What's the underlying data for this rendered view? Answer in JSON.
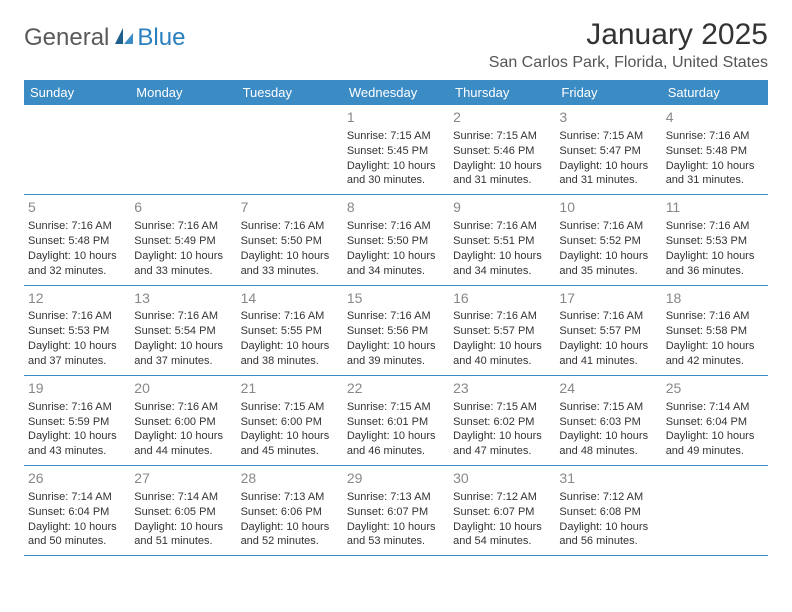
{
  "logo": {
    "general": "General",
    "blue": "Blue"
  },
  "title": "January 2025",
  "location": "San Carlos Park, Florida, United States",
  "colors": {
    "header_bg": "#3b8bc4",
    "header_text": "#ffffff",
    "border": "#3b8bc4",
    "daynum": "#888888",
    "body_text": "#333333",
    "logo_general": "#5a5a5a",
    "logo_blue": "#2a7fbf"
  },
  "day_headers": [
    "Sunday",
    "Monday",
    "Tuesday",
    "Wednesday",
    "Thursday",
    "Friday",
    "Saturday"
  ],
  "weeks": [
    [
      null,
      null,
      null,
      {
        "n": "1",
        "sr": "7:15 AM",
        "ss": "5:45 PM",
        "dl": "10 hours and 30 minutes."
      },
      {
        "n": "2",
        "sr": "7:15 AM",
        "ss": "5:46 PM",
        "dl": "10 hours and 31 minutes."
      },
      {
        "n": "3",
        "sr": "7:15 AM",
        "ss": "5:47 PM",
        "dl": "10 hours and 31 minutes."
      },
      {
        "n": "4",
        "sr": "7:16 AM",
        "ss": "5:48 PM",
        "dl": "10 hours and 31 minutes."
      }
    ],
    [
      {
        "n": "5",
        "sr": "7:16 AM",
        "ss": "5:48 PM",
        "dl": "10 hours and 32 minutes."
      },
      {
        "n": "6",
        "sr": "7:16 AM",
        "ss": "5:49 PM",
        "dl": "10 hours and 33 minutes."
      },
      {
        "n": "7",
        "sr": "7:16 AM",
        "ss": "5:50 PM",
        "dl": "10 hours and 33 minutes."
      },
      {
        "n": "8",
        "sr": "7:16 AM",
        "ss": "5:50 PM",
        "dl": "10 hours and 34 minutes."
      },
      {
        "n": "9",
        "sr": "7:16 AM",
        "ss": "5:51 PM",
        "dl": "10 hours and 34 minutes."
      },
      {
        "n": "10",
        "sr": "7:16 AM",
        "ss": "5:52 PM",
        "dl": "10 hours and 35 minutes."
      },
      {
        "n": "11",
        "sr": "7:16 AM",
        "ss": "5:53 PM",
        "dl": "10 hours and 36 minutes."
      }
    ],
    [
      {
        "n": "12",
        "sr": "7:16 AM",
        "ss": "5:53 PM",
        "dl": "10 hours and 37 minutes."
      },
      {
        "n": "13",
        "sr": "7:16 AM",
        "ss": "5:54 PM",
        "dl": "10 hours and 37 minutes."
      },
      {
        "n": "14",
        "sr": "7:16 AM",
        "ss": "5:55 PM",
        "dl": "10 hours and 38 minutes."
      },
      {
        "n": "15",
        "sr": "7:16 AM",
        "ss": "5:56 PM",
        "dl": "10 hours and 39 minutes."
      },
      {
        "n": "16",
        "sr": "7:16 AM",
        "ss": "5:57 PM",
        "dl": "10 hours and 40 minutes."
      },
      {
        "n": "17",
        "sr": "7:16 AM",
        "ss": "5:57 PM",
        "dl": "10 hours and 41 minutes."
      },
      {
        "n": "18",
        "sr": "7:16 AM",
        "ss": "5:58 PM",
        "dl": "10 hours and 42 minutes."
      }
    ],
    [
      {
        "n": "19",
        "sr": "7:16 AM",
        "ss": "5:59 PM",
        "dl": "10 hours and 43 minutes."
      },
      {
        "n": "20",
        "sr": "7:16 AM",
        "ss": "6:00 PM",
        "dl": "10 hours and 44 minutes."
      },
      {
        "n": "21",
        "sr": "7:15 AM",
        "ss": "6:00 PM",
        "dl": "10 hours and 45 minutes."
      },
      {
        "n": "22",
        "sr": "7:15 AM",
        "ss": "6:01 PM",
        "dl": "10 hours and 46 minutes."
      },
      {
        "n": "23",
        "sr": "7:15 AM",
        "ss": "6:02 PM",
        "dl": "10 hours and 47 minutes."
      },
      {
        "n": "24",
        "sr": "7:15 AM",
        "ss": "6:03 PM",
        "dl": "10 hours and 48 minutes."
      },
      {
        "n": "25",
        "sr": "7:14 AM",
        "ss": "6:04 PM",
        "dl": "10 hours and 49 minutes."
      }
    ],
    [
      {
        "n": "26",
        "sr": "7:14 AM",
        "ss": "6:04 PM",
        "dl": "10 hours and 50 minutes."
      },
      {
        "n": "27",
        "sr": "7:14 AM",
        "ss": "6:05 PM",
        "dl": "10 hours and 51 minutes."
      },
      {
        "n": "28",
        "sr": "7:13 AM",
        "ss": "6:06 PM",
        "dl": "10 hours and 52 minutes."
      },
      {
        "n": "29",
        "sr": "7:13 AM",
        "ss": "6:07 PM",
        "dl": "10 hours and 53 minutes."
      },
      {
        "n": "30",
        "sr": "7:12 AM",
        "ss": "6:07 PM",
        "dl": "10 hours and 54 minutes."
      },
      {
        "n": "31",
        "sr": "7:12 AM",
        "ss": "6:08 PM",
        "dl": "10 hours and 56 minutes."
      },
      null
    ]
  ],
  "labels": {
    "sunrise": "Sunrise:",
    "sunset": "Sunset:",
    "daylight": "Daylight:"
  }
}
